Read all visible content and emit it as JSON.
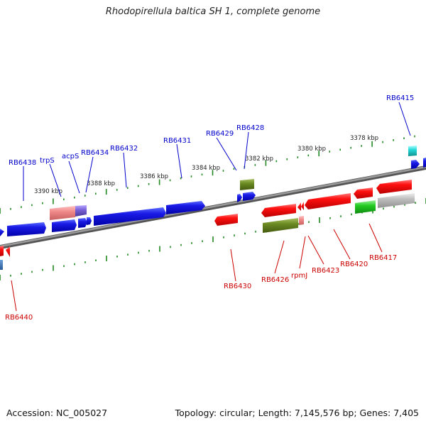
{
  "title": "Rhodopirellula baltica SH 1, complete genome",
  "footer": {
    "accession": "Accession: NC_005027",
    "summary": "Topology: circular; Length: 7,145,576 bp; Genes: 7,405"
  },
  "colors": {
    "forward_label": "#0000cc",
    "reverse_label": "#cc0000",
    "backbone": "#777777",
    "tick": "#228822"
  },
  "scale_labels": [
    "3390 kbp",
    "3388 kbp",
    "3386 kbp",
    "3384 kbp",
    "3382 kbp",
    "3380 kbp",
    "3378 kbp"
  ],
  "forward_genes": [
    "RB6438",
    "trpS",
    "acpS",
    "RB6434",
    "RB6432",
    "RB6431",
    "RB6429",
    "RB6428",
    "RB6415"
  ],
  "reverse_genes": [
    "RB6440",
    "RB6430",
    "RB6426",
    "rpmJ",
    "RB6423",
    "RB6420",
    "RB6417"
  ]
}
